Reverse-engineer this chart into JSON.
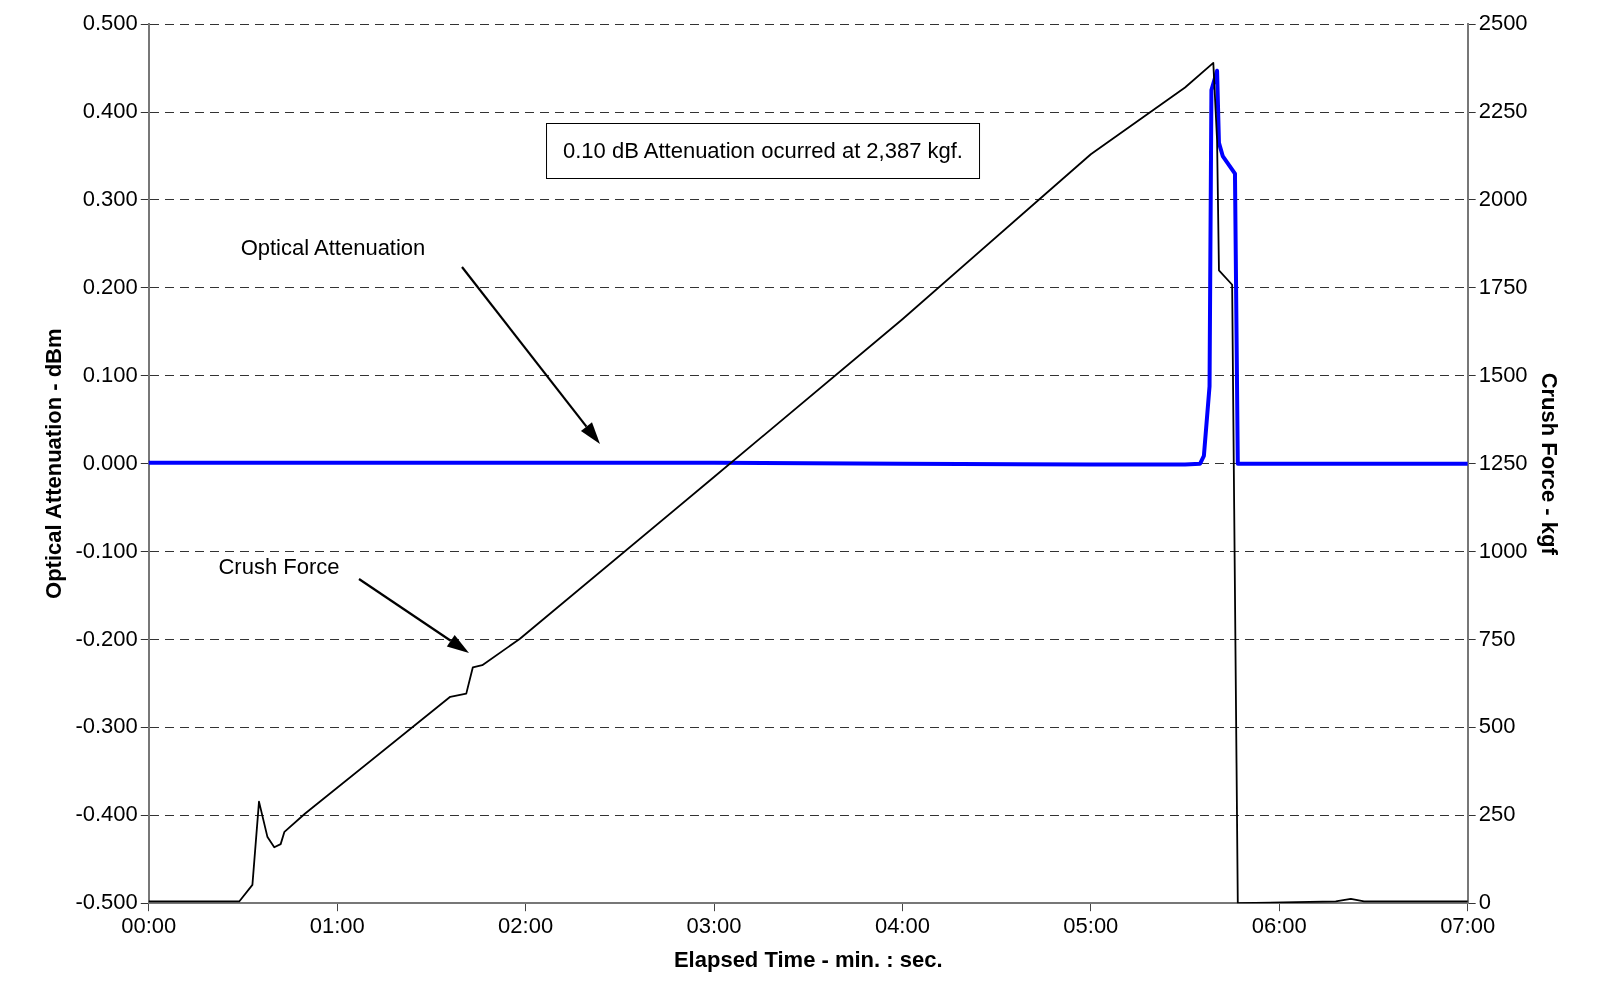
{
  "chart_data": {
    "type": "line",
    "xlabel": "Elapsed Time - min. : sec.",
    "ylabel": "Optical Attenuation - dBm",
    "y2label": "Crush Force - kgf",
    "xlim": [
      0,
      7
    ],
    "xticks": [
      {
        "value": 0,
        "label": "00:00"
      },
      {
        "value": 1,
        "label": "01:00"
      },
      {
        "value": 2,
        "label": "02:00"
      },
      {
        "value": 3,
        "label": "03:00"
      },
      {
        "value": 4,
        "label": "04:00"
      },
      {
        "value": 5,
        "label": "05:00"
      },
      {
        "value": 6,
        "label": "06:00"
      },
      {
        "value": 7,
        "label": "07:00"
      }
    ],
    "ylim": [
      -0.5,
      0.5
    ],
    "yticks": [
      {
        "value": -0.5,
        "label": "-0.500"
      },
      {
        "value": -0.4,
        "label": "-0.400"
      },
      {
        "value": -0.3,
        "label": "-0.300"
      },
      {
        "value": -0.2,
        "label": "-0.200"
      },
      {
        "value": -0.1,
        "label": "-0.100"
      },
      {
        "value": 0,
        "label": "0.000"
      },
      {
        "value": 0.1,
        "label": "0.100"
      },
      {
        "value": 0.2,
        "label": "0.200"
      },
      {
        "value": 0.3,
        "label": "0.300"
      },
      {
        "value": 0.4,
        "label": "0.400"
      },
      {
        "value": 0.5,
        "label": "0.500"
      }
    ],
    "y2lim": [
      0,
      2500
    ],
    "y2ticks": [
      0,
      250,
      500,
      750,
      1000,
      1250,
      1500,
      1750,
      2000,
      2250,
      2500
    ],
    "grid": "y",
    "legend": false,
    "marker": "none",
    "line_style": "solid",
    "series": [
      {
        "color": "#0000ff",
        "x": [
          0,
          1,
          2,
          3,
          4,
          5,
          5.5,
          5.58,
          5.6,
          5.63,
          5.64,
          5.67,
          5.68,
          5.7,
          5.765,
          5.78,
          6,
          7
        ],
        "values": [
          0.001,
          0.001,
          0.001,
          0.001,
          0,
          -0.001,
          -0.001,
          0,
          0.009,
          0.088,
          0.425,
          0.447,
          0.365,
          0.35,
          0.33,
          0,
          0,
          0
        ]
      },
      {
        "color": "#000000",
        "axis": "y2",
        "x": [
          0,
          0.48,
          0.55,
          0.585,
          0.63,
          0.666,
          0.7,
          0.72,
          0.83,
          1.6,
          1.685,
          1.72,
          1.77,
          1.97,
          3,
          4,
          5,
          5.5,
          5.65,
          5.67,
          5.68,
          5.75,
          5.78,
          6.3,
          6.38,
          6.45,
          7
        ],
        "values": [
          5,
          5,
          52,
          289,
          188,
          159,
          168,
          203,
          255,
          587,
          596,
          671,
          677,
          752,
          1212,
          1661,
          2130,
          2320,
          2390,
          2170,
          1800,
          1759,
          0,
          5,
          12,
          5,
          5
        ]
      }
    ],
    "annotations": [
      "Optical Attenuation",
      "Crush Force",
      "0.10 dB Attenuation ocurred at 2,387 kgf."
    ]
  }
}
